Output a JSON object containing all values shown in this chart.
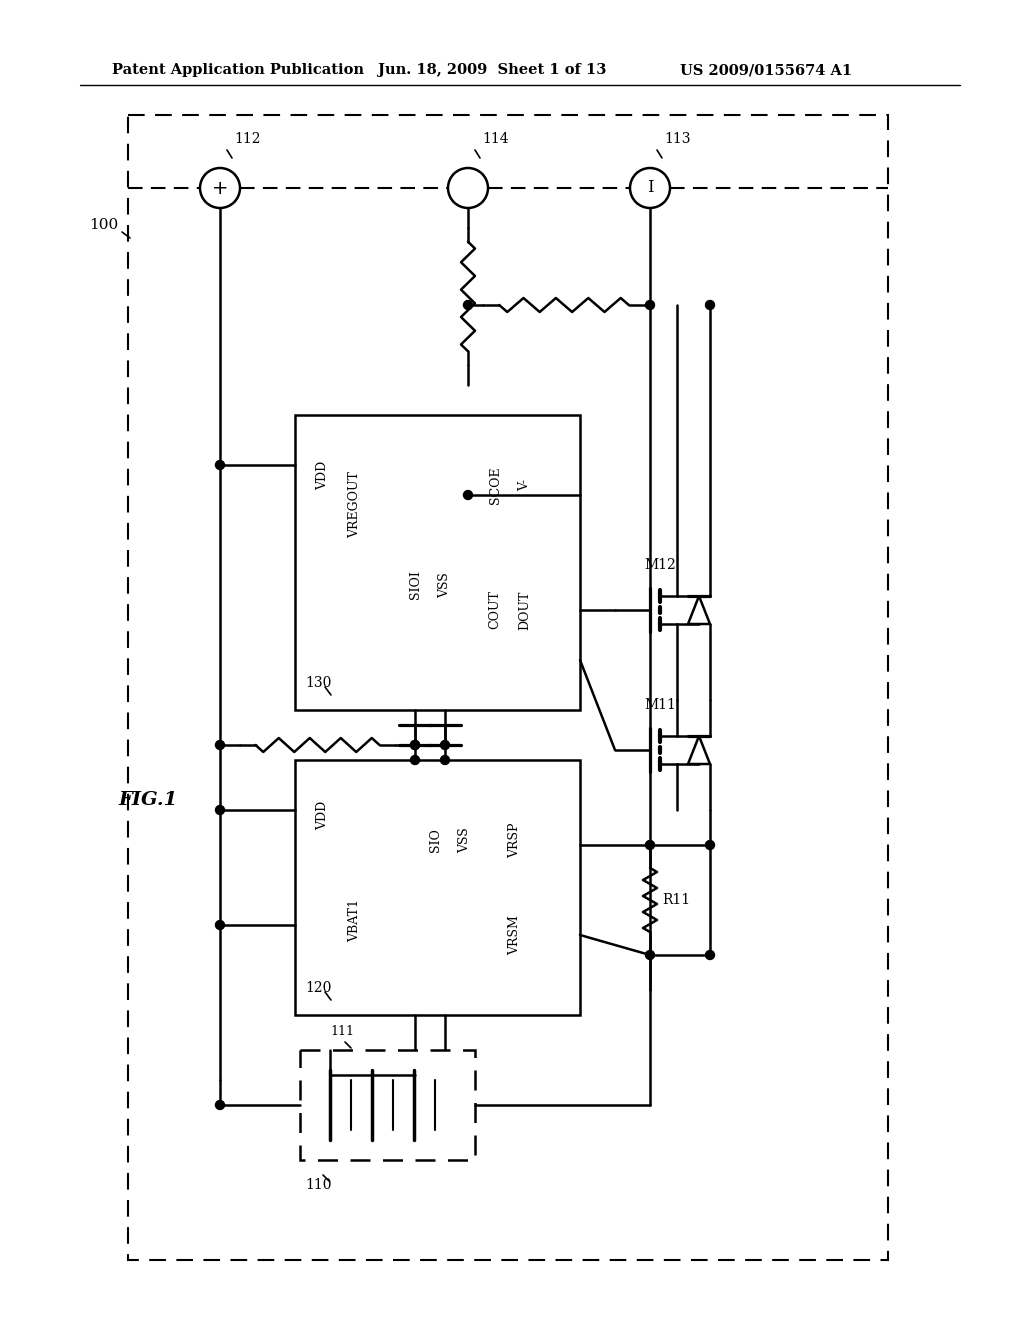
{
  "title_left": "Patent Application Publication",
  "title_mid": "Jun. 18, 2009  Sheet 1 of 13",
  "title_right": "US 2009/0155674 A1",
  "fig_label": "FIG.1",
  "background_color": "#ffffff"
}
